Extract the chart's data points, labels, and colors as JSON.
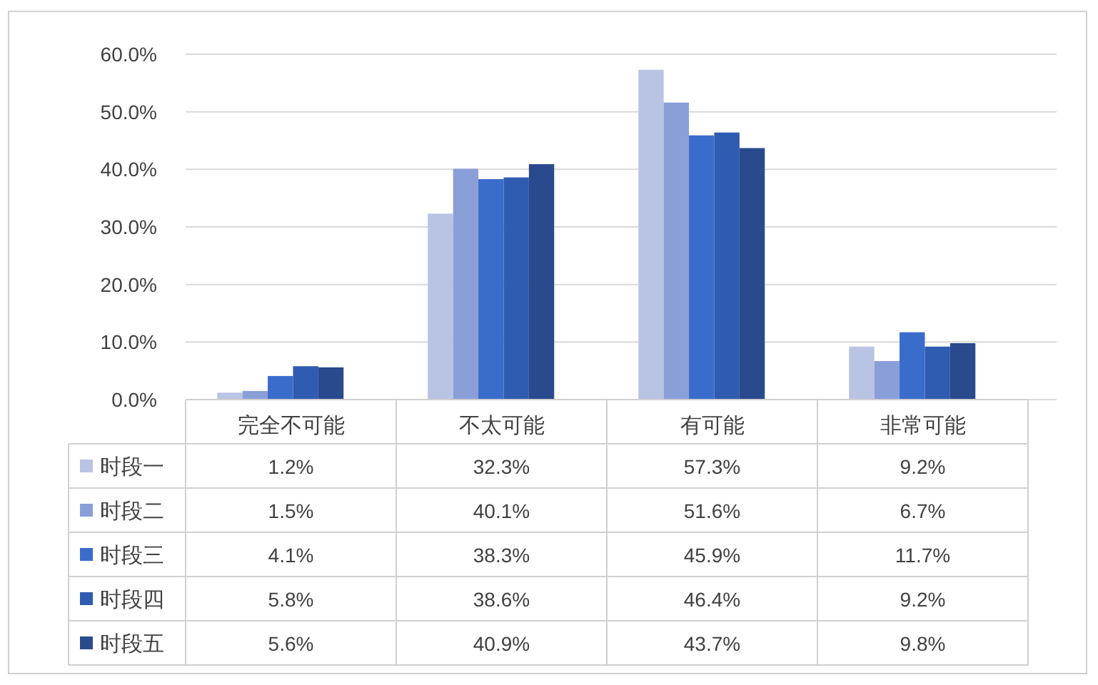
{
  "chart_data": {
    "type": "bar",
    "categories": [
      "完全不可能",
      "不太可能",
      "有可能",
      "非常可能"
    ],
    "series": [
      {
        "name": "时段一",
        "color": "#b9c3e3",
        "values": [
          1.2,
          32.3,
          57.3,
          9.2
        ],
        "value_labels": [
          "1.2%",
          "32.3%",
          "57.3%",
          "9.2%"
        ]
      },
      {
        "name": "时段二",
        "color": "#8a9fd8",
        "values": [
          1.5,
          40.1,
          51.6,
          6.7
        ],
        "value_labels": [
          "1.5%",
          "40.1%",
          "51.6%",
          "6.7%"
        ]
      },
      {
        "name": "时段三",
        "color": "#3a6ccb",
        "values": [
          4.1,
          38.3,
          45.9,
          11.7
        ],
        "value_labels": [
          "4.1%",
          "38.3%",
          "45.9%",
          "11.7%"
        ]
      },
      {
        "name": "时段四",
        "color": "#2f5bb0",
        "values": [
          5.8,
          38.6,
          46.4,
          9.2
        ],
        "value_labels": [
          "5.8%",
          "38.6%",
          "46.4%",
          "9.2%"
        ]
      },
      {
        "name": "时段五",
        "color": "#2a4a8e",
        "values": [
          5.6,
          40.9,
          43.7,
          9.8
        ],
        "value_labels": [
          "5.6%",
          "40.9%",
          "43.7%",
          "9.8%"
        ]
      }
    ],
    "ylim": [
      0,
      60
    ],
    "yticks": [
      {
        "value": 0,
        "label": "0.0%"
      },
      {
        "value": 10,
        "label": "10.0%"
      },
      {
        "value": 20,
        "label": "20.0%"
      },
      {
        "value": 30,
        "label": "30.0%"
      },
      {
        "value": 40,
        "label": "40.0%"
      },
      {
        "value": 50,
        "label": "50.0%"
      },
      {
        "value": 60,
        "label": "60.0%"
      }
    ],
    "grid": "y",
    "legend": "bottom"
  }
}
